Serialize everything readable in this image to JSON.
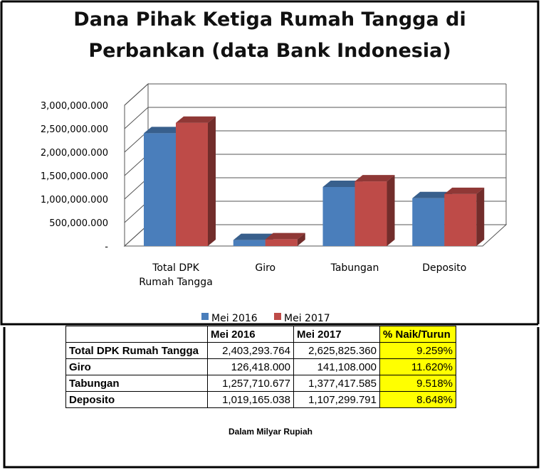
{
  "chart_data": {
    "type": "bar",
    "title_lines": [
      "Dana Pihak Ketiga Rumah Tangga di",
      "Perbankan (data Bank Indonesia)"
    ],
    "categories": [
      [
        "Total DPK",
        "Rumah Tangga"
      ],
      [
        "Giro"
      ],
      [
        "Tabungan"
      ],
      [
        "Deposito"
      ]
    ],
    "series": [
      {
        "name": "Mei 2016",
        "color": "#4a7ebb",
        "values": [
          2403293.764,
          126418.0,
          1257710.677,
          1019165.038
        ]
      },
      {
        "name": "Mei 2017",
        "color": "#be4b48",
        "values": [
          2625825.36,
          141108.0,
          1377417.585,
          1107299.791
        ]
      }
    ],
    "ylim": [
      0,
      3000000
    ],
    "yticks": [
      {
        "value": 0,
        "label": "-"
      },
      {
        "value": 500000,
        "label": "500,000.000"
      },
      {
        "value": 1000000,
        "label": "1,000,000.000"
      },
      {
        "value": 1500000,
        "label": "1,500,000.000"
      },
      {
        "value": 2000000,
        "label": "2,000,000.000"
      },
      {
        "value": 2500000,
        "label": "2,500,000.000"
      },
      {
        "value": 3000000,
        "label": "3,000,000.000"
      }
    ],
    "grid": true,
    "legend_position": "bottom"
  },
  "table": {
    "headers": [
      "",
      "Mei 2016",
      "Mei 2017",
      "% Naik/Turun"
    ],
    "rows": [
      {
        "label": "Total DPK Rumah Tangga",
        "v2016": "2,403,293.764",
        "v2017": "2,625,825.360",
        "pct": "9.259%"
      },
      {
        "label": "Giro",
        "v2016": "126,418.000",
        "v2017": "141,108.000",
        "pct": "11.620%"
      },
      {
        "label": "Tabungan",
        "v2016": "1,257,710.677",
        "v2017": "1,377,417.585",
        "pct": "9.518%"
      },
      {
        "label": "Deposito",
        "v2016": "1,019,165.038",
        "v2017": "1,107,299.791",
        "pct": "8.648%"
      }
    ]
  },
  "caption": "Dalam Milyar Rupiah"
}
